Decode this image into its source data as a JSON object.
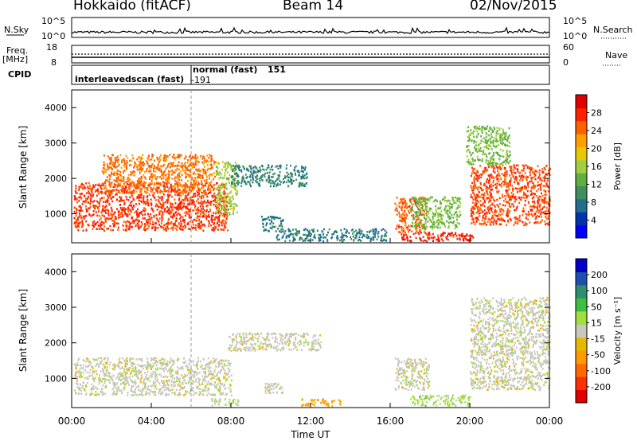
{
  "header": {
    "station": "Hokkaido (fitACF)",
    "beam": "Beam 14",
    "date": "02/Nov/2015"
  },
  "top_panels": {
    "nsky_label": "N.Sky",
    "nsky_ticks": [
      "10^5",
      "10^0"
    ],
    "nsearch_label": "N.Search",
    "nsearch_ticks": [
      "10^5",
      "10^0"
    ],
    "freq_label": "Freq.",
    "freq_unit": "[MHz]",
    "freq_ticks": [
      "18",
      "8"
    ],
    "nave_label": "Nave",
    "nave_ticks": [
      "60",
      "0"
    ],
    "cpid_label": "CPID",
    "cpid_segments": [
      {
        "name": "interleavedscan (fast)",
        "id": "-191"
      },
      {
        "name": "normal (fast)",
        "id": "151"
      }
    ],
    "cpid_switch_hour": 6.0
  },
  "chart_data": [
    {
      "type": "heatmap",
      "quantity": "Power",
      "ylabel": "Slant Range [km]",
      "ylim": [
        180,
        4500
      ],
      "yticks": [
        "1000",
        "2000",
        "3000",
        "4000"
      ],
      "xlim": [
        0,
        24
      ],
      "colorbar": {
        "label": "Power [dB]",
        "range": [
          0,
          32
        ],
        "ticks": [
          "4",
          "8",
          "12",
          "16",
          "20",
          "24",
          "28"
        ],
        "colors": [
          "#0000ff",
          "#0033aa",
          "#1f6f8f",
          "#3f8f5f",
          "#5fae3f",
          "#9fcf3f",
          "#e8c800",
          "#ffa000",
          "#ff6000",
          "#ff2000",
          "#e00000"
        ]
      },
      "echo_regions": [
        {
          "t0": 0.1,
          "t1": 7.8,
          "r0": 550,
          "r1": 1900,
          "value": 27
        },
        {
          "t0": 1.5,
          "t1": 7.2,
          "r0": 1600,
          "r1": 2700,
          "value": 24
        },
        {
          "t0": 7.2,
          "t1": 8.3,
          "r0": 1000,
          "r1": 2500,
          "value": 16
        },
        {
          "t0": 8.0,
          "t1": 11.8,
          "r0": 1800,
          "r1": 2400,
          "value": 9
        },
        {
          "t0": 9.5,
          "t1": 10.6,
          "r0": 500,
          "r1": 950,
          "value": 8
        },
        {
          "t0": 10.2,
          "t1": 15.8,
          "r0": 250,
          "r1": 600,
          "value": 8
        },
        {
          "t0": 16.2,
          "t1": 17.8,
          "r0": 500,
          "r1": 1500,
          "value": 25
        },
        {
          "t0": 16.5,
          "t1": 20.2,
          "r0": 250,
          "r1": 500,
          "value": 28
        },
        {
          "t0": 17.0,
          "t1": 19.5,
          "r0": 600,
          "r1": 1500,
          "value": 14
        },
        {
          "t0": 20.0,
          "t1": 24.0,
          "r0": 700,
          "r1": 2400,
          "value": 26
        },
        {
          "t0": 19.8,
          "t1": 22.0,
          "r0": 2400,
          "r1": 3500,
          "value": 14
        }
      ]
    },
    {
      "type": "heatmap",
      "quantity": "Velocity",
      "ylabel": "Slant Range [km]",
      "ylim": [
        180,
        4500
      ],
      "yticks": [
        "1000",
        "2000",
        "3000",
        "4000"
      ],
      "xlim": [
        0,
        24
      ],
      "colorbar": {
        "label": "Velocity [m s⁻¹]",
        "range": [
          -250,
          250
        ],
        "ticks": [
          "-200",
          "-100",
          "-50",
          "-15",
          "15",
          "50",
          "100",
          "200"
        ],
        "colors": [
          "#e00000",
          "#ff3000",
          "#ff6a00",
          "#ff9a00",
          "#e8b800",
          "#c8c8c0",
          "#9fdf3f",
          "#3fbf3f",
          "#2f8f6f",
          "#1f4faf",
          "#0000c8"
        ]
      },
      "echo_regions": [
        {
          "t0": 0.1,
          "t1": 8.0,
          "r0": 550,
          "r1": 1600,
          "value": 0
        },
        {
          "t0": 7.8,
          "t1": 12.5,
          "r0": 1800,
          "r1": 2300,
          "value": 0
        },
        {
          "t0": 9.5,
          "t1": 10.6,
          "r0": 600,
          "r1": 900,
          "value": 0
        },
        {
          "t0": 11.5,
          "t1": 13.5,
          "r0": 250,
          "r1": 450,
          "value": -80
        },
        {
          "t0": 16.2,
          "t1": 18.0,
          "r0": 700,
          "r1": 1600,
          "value": 0
        },
        {
          "t0": 17.0,
          "t1": 20.0,
          "r0": 250,
          "r1": 550,
          "value": 40
        },
        {
          "t0": 20.0,
          "t1": 24.0,
          "r0": 700,
          "r1": 3300,
          "value": 0
        },
        {
          "t0": 7.0,
          "t1": 8.4,
          "r0": 250,
          "r1": 450,
          "value": 30
        }
      ]
    }
  ],
  "xaxis": {
    "label": "Time UT",
    "ticks": [
      "00:00",
      "04:00",
      "08:00",
      "12:00",
      "16:00",
      "20:00",
      "00:00"
    ]
  }
}
